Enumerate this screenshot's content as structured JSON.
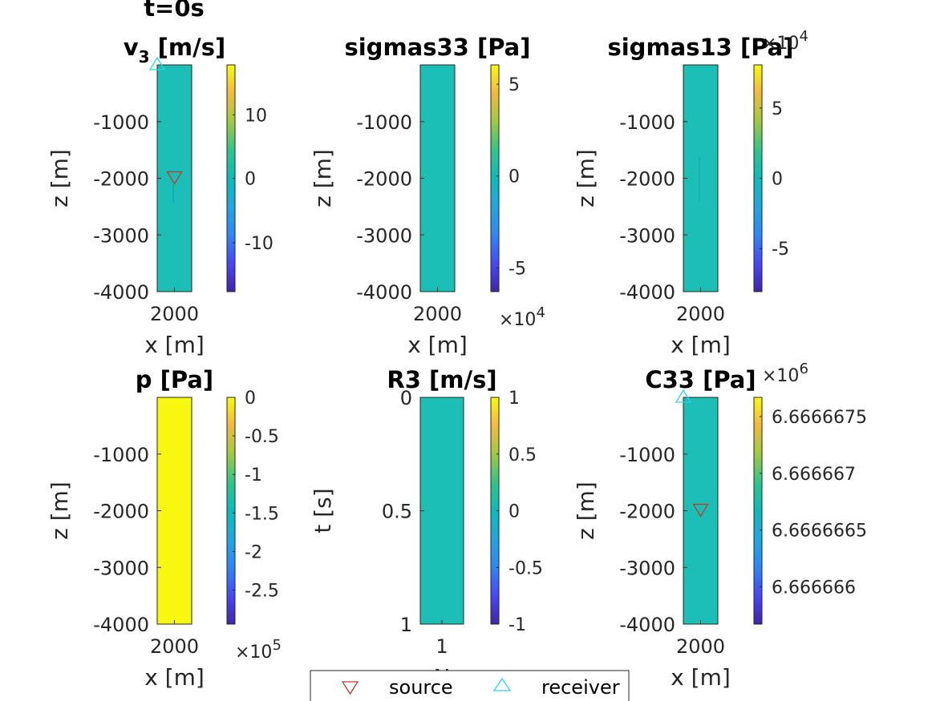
{
  "figure": {
    "time_label": "t=0s"
  },
  "legend": {
    "source": "source",
    "receiver": "receiver"
  },
  "colors": {
    "field": "#1bbfb5",
    "p_field": "#f7f70f",
    "source": "#c0392b",
    "receiver": "#27d6e8"
  },
  "panels": [
    {
      "title_sym": "v",
      "title_sub": "3",
      "title_rest": " [m/s]",
      "xlabel": "x [m]",
      "ylabel": "z [m]",
      "xticks": [
        "2000"
      ],
      "yticks": [
        "-1000",
        "-2000",
        "-3000",
        "-4000"
      ],
      "cbticks": [
        "10",
        "0",
        "-10"
      ],
      "cbexp": "",
      "field": "field",
      "markers": [
        "receiver",
        "source"
      ]
    },
    {
      "title_sym": "sigmas33 [Pa]",
      "xlabel": "x [m]",
      "ylabel": "z [m]",
      "xticks": [
        "2000"
      ],
      "yticks": [
        "-1000",
        "-2000",
        "-3000",
        "-4000"
      ],
      "cbticks": [
        "5",
        "0",
        "-5"
      ],
      "cbexp": "10",
      "cbexp_pow": "4",
      "cbexp_pos": "bottom",
      "field": "field",
      "markers": []
    },
    {
      "title_sym": "sigmas13 [Pa]",
      "xlabel": "x [m]",
      "ylabel": "z [m]",
      "xticks": [
        "2000"
      ],
      "yticks": [
        "-1000",
        "-2000",
        "-3000",
        "-4000"
      ],
      "cbticks": [
        "5",
        "0",
        "-5"
      ],
      "cbexp": "10",
      "cbexp_pow": "4",
      "cbexp_pos": "top",
      "field": "field",
      "markers": []
    },
    {
      "title_sym": "p [Pa]",
      "xlabel": "x [m]",
      "ylabel": "z [m]",
      "xticks": [
        "2000"
      ],
      "yticks": [
        "-1000",
        "-2000",
        "-3000",
        "-4000"
      ],
      "cbticks": [
        "0",
        "-0.5",
        "-1",
        "-1.5",
        "-2",
        "-2.5"
      ],
      "cbexp": "10",
      "cbexp_pow": "5",
      "cbexp_pos": "bottom",
      "field": "p_field",
      "markers": []
    },
    {
      "title_sym": "R3 [m/s]",
      "xlabel": "N",
      "ylabel": "t [s]",
      "xticks": [
        "1"
      ],
      "yticks": [
        "0",
        "0.5",
        "1"
      ],
      "cbticks": [
        "1",
        "0.5",
        "0",
        "-0.5",
        "-1"
      ],
      "cbexp": "",
      "field": "field",
      "markers": []
    },
    {
      "title_sym": "C33 [Pa]",
      "xlabel": "x [m]",
      "ylabel": "z [m]",
      "xticks": [
        "2000"
      ],
      "yticks": [
        "-1000",
        "-2000",
        "-3000",
        "-4000"
      ],
      "cbticks": [
        "6.6666675",
        "6.666667",
        "6.6666665",
        "6.666666"
      ],
      "cbexp": "10",
      "cbexp_pow": "6",
      "cbexp_pos": "top",
      "field": "field",
      "markers": [
        "receiver",
        "source"
      ]
    }
  ],
  "chart_data": [
    {
      "type": "heatmap",
      "title": "v3 [m/s]",
      "xlabel": "x [m]",
      "ylabel": "z [m]",
      "ylim": [
        -4000,
        0
      ],
      "colorbar": [
        -17,
        17
      ],
      "uniform_value": 0
    },
    {
      "type": "heatmap",
      "title": "sigmas33 [Pa]",
      "xlabel": "x [m]",
      "ylabel": "z [m]",
      "ylim": [
        -4000,
        0
      ],
      "colorbar": [
        -60000,
        60000
      ],
      "uniform_value": 0
    },
    {
      "type": "heatmap",
      "title": "sigmas13 [Pa]",
      "xlabel": "x [m]",
      "ylabel": "z [m]",
      "ylim": [
        -4000,
        0
      ],
      "colorbar": [
        -80000,
        80000
      ],
      "uniform_value": 0
    },
    {
      "type": "heatmap",
      "title": "p [Pa]",
      "xlabel": "x [m]",
      "ylabel": "z [m]",
      "ylim": [
        -4000,
        0
      ],
      "colorbar": [
        -280000,
        0
      ],
      "uniform_value": 0
    },
    {
      "type": "heatmap",
      "title": "R3 [m/s]",
      "xlabel": "N",
      "ylabel": "t [s]",
      "ylim": [
        0,
        1
      ],
      "colorbar": [
        -1,
        1
      ],
      "uniform_value": 0
    },
    {
      "type": "heatmap",
      "title": "C33 [Pa]",
      "xlabel": "x [m]",
      "ylabel": "z [m]",
      "ylim": [
        -4000,
        0
      ],
      "colorbar": [
        6666665.8,
        6666667.8
      ],
      "uniform_value": 6666666.7
    }
  ]
}
